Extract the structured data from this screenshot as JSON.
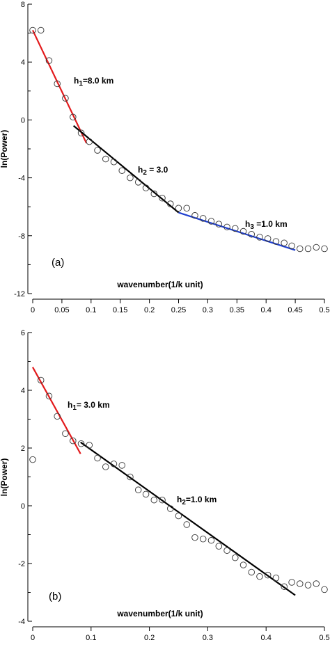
{
  "chart_data": [
    {
      "type": "scatter",
      "panel_label": "(a)",
      "xlabel": "wavenumber(1/k unit)",
      "ylabel": "ln(Power)",
      "xlim": [
        0,
        0.5
      ],
      "ylim": [
        -12,
        8
      ],
      "x_ticks": [
        "0",
        "0.05",
        "0.1",
        "0.15",
        "0.2",
        "0.25",
        "0.3",
        "0.35",
        "0.4",
        "0.45",
        "0.5"
      ],
      "y_ticks": [
        "8",
        "4",
        "0",
        "-4",
        "-8",
        "-12"
      ],
      "points": [
        [
          0.0,
          6.2
        ],
        [
          0.014,
          6.2
        ],
        [
          0.028,
          4.1
        ],
        [
          0.042,
          2.5
        ],
        [
          0.056,
          1.5
        ],
        [
          0.069,
          0.2
        ],
        [
          0.083,
          -0.9
        ],
        [
          0.097,
          -1.5
        ],
        [
          0.111,
          -2.1
        ],
        [
          0.125,
          -2.7
        ],
        [
          0.139,
          -2.9
        ],
        [
          0.153,
          -3.5
        ],
        [
          0.167,
          -4.0
        ],
        [
          0.181,
          -4.3
        ],
        [
          0.194,
          -4.7
        ],
        [
          0.208,
          -5.1
        ],
        [
          0.222,
          -5.4
        ],
        [
          0.236,
          -5.8
        ],
        [
          0.25,
          -6.1
        ],
        [
          0.264,
          -6.1
        ],
        [
          0.278,
          -6.6
        ],
        [
          0.292,
          -6.8
        ],
        [
          0.306,
          -7.0
        ],
        [
          0.319,
          -7.2
        ],
        [
          0.333,
          -7.4
        ],
        [
          0.347,
          -7.5
        ],
        [
          0.361,
          -7.7
        ],
        [
          0.375,
          -7.9
        ],
        [
          0.389,
          -8.1
        ],
        [
          0.403,
          -8.2
        ],
        [
          0.417,
          -8.4
        ],
        [
          0.431,
          -8.5
        ],
        [
          0.444,
          -8.7
        ],
        [
          0.458,
          -8.9
        ],
        [
          0.472,
          -8.9
        ],
        [
          0.486,
          -8.8
        ],
        [
          0.5,
          -8.9
        ]
      ],
      "fit_lines": [
        {
          "label": "h1=8.0 km",
          "color": "#e31a1c",
          "x": [
            0.0,
            0.092
          ],
          "y": [
            6.2,
            -1.6
          ]
        },
        {
          "label": "h2 = 3.0",
          "color": "#000000",
          "x": [
            0.07,
            0.25
          ],
          "y": [
            -0.4,
            -6.4
          ]
        },
        {
          "label": "h3 =1.0 km",
          "color": "#1f3fcf",
          "x": [
            0.25,
            0.45
          ],
          "y": [
            -6.4,
            -9.0
          ]
        }
      ]
    },
    {
      "type": "scatter",
      "panel_label": "(b)",
      "xlabel": "wavenumber(1/k unit)",
      "ylabel": "ln(Power)",
      "xlim": [
        0,
        0.5
      ],
      "ylim": [
        -4,
        6
      ],
      "x_ticks": [
        "0",
        "0.1",
        "0.2",
        "0.3",
        "0.4",
        "0.5"
      ],
      "y_ticks": [
        "6",
        "4",
        "2",
        "0",
        "-2",
        "-4"
      ],
      "points": [
        [
          0.0,
          1.6
        ],
        [
          0.014,
          4.35
        ],
        [
          0.028,
          3.8
        ],
        [
          0.042,
          3.1
        ],
        [
          0.056,
          2.5
        ],
        [
          0.069,
          2.25
        ],
        [
          0.083,
          2.15
        ],
        [
          0.097,
          2.1
        ],
        [
          0.111,
          1.65
        ],
        [
          0.125,
          1.35
        ],
        [
          0.139,
          1.45
        ],
        [
          0.153,
          1.4
        ],
        [
          0.167,
          1.0
        ],
        [
          0.181,
          0.55
        ],
        [
          0.194,
          0.4
        ],
        [
          0.208,
          0.2
        ],
        [
          0.222,
          0.2
        ],
        [
          0.236,
          -0.1
        ],
        [
          0.25,
          -0.35
        ],
        [
          0.264,
          -0.65
        ],
        [
          0.278,
          -1.1
        ],
        [
          0.292,
          -1.15
        ],
        [
          0.306,
          -1.2
        ],
        [
          0.319,
          -1.4
        ],
        [
          0.333,
          -1.55
        ],
        [
          0.347,
          -1.8
        ],
        [
          0.361,
          -2.05
        ],
        [
          0.375,
          -2.3
        ],
        [
          0.389,
          -2.45
        ],
        [
          0.403,
          -2.4
        ],
        [
          0.417,
          -2.5
        ],
        [
          0.431,
          -2.8
        ],
        [
          0.444,
          -2.65
        ],
        [
          0.458,
          -2.7
        ],
        [
          0.472,
          -2.75
        ],
        [
          0.486,
          -2.7
        ],
        [
          0.5,
          -2.9
        ]
      ],
      "fit_lines": [
        {
          "label": "h1= 3.0 km",
          "color": "#e31a1c",
          "x": [
            0.0,
            0.082
          ],
          "y": [
            4.8,
            1.8
          ]
        },
        {
          "label": "h2=1.0 km",
          "color": "#000000",
          "x": [
            0.082,
            0.45
          ],
          "y": [
            2.2,
            -3.1
          ]
        }
      ]
    }
  ]
}
